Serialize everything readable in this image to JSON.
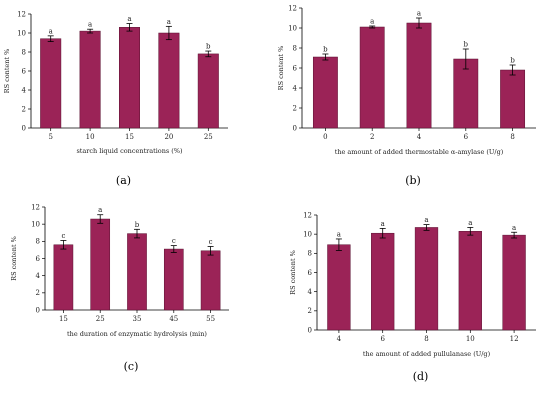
{
  "colors": {
    "bar": "#9b2357",
    "bar_edge": "#5a1030",
    "axis": "#000000",
    "error": "#000000"
  },
  "chart_data": [
    {
      "type": "bar",
      "panel_label": "(a)",
      "xlabel": "starch liquid concentrations (%)",
      "ylabel": "RS content %",
      "ylim": [
        0,
        12
      ],
      "yticks": [
        0,
        2,
        4,
        6,
        8,
        10,
        12
      ],
      "categories": [
        "5",
        "10",
        "15",
        "20",
        "25"
      ],
      "values": [
        9.4,
        10.2,
        10.6,
        10.0,
        7.8
      ],
      "errors": [
        0.3,
        0.2,
        0.4,
        0.7,
        0.3
      ],
      "significance": [
        "a",
        "a",
        "a",
        "a",
        "b"
      ]
    },
    {
      "type": "bar",
      "panel_label": "(b)",
      "xlabel": "the amount of added thermostable α-amylase (U/g)",
      "ylabel": "RS content %",
      "ylim": [
        0,
        12
      ],
      "yticks": [
        0,
        2,
        4,
        6,
        8,
        10,
        12
      ],
      "categories": [
        "0",
        "2",
        "4",
        "6",
        "8"
      ],
      "values": [
        7.1,
        10.1,
        10.5,
        6.9,
        5.8
      ],
      "errors": [
        0.3,
        0.1,
        0.5,
        1.0,
        0.5
      ],
      "significance": [
        "b",
        "a",
        "a",
        "b",
        "b"
      ]
    },
    {
      "type": "bar",
      "panel_label": "(c)",
      "xlabel": "the duration of enzymatic hydrolysis (min)",
      "ylabel": "RS content %",
      "ylim": [
        0,
        12
      ],
      "yticks": [
        0,
        2,
        4,
        6,
        8,
        10,
        12
      ],
      "categories": [
        "15",
        "25",
        "35",
        "45",
        "55"
      ],
      "values": [
        7.6,
        10.6,
        8.9,
        7.1,
        6.9
      ],
      "errors": [
        0.5,
        0.5,
        0.5,
        0.4,
        0.5
      ],
      "significance": [
        "c",
        "a",
        "b",
        "c",
        "c"
      ]
    },
    {
      "type": "bar",
      "panel_label": "(d)",
      "xlabel": "the amount of added pullulanase (U/g)",
      "ylabel": "RS content %",
      "ylim": [
        0,
        12
      ],
      "yticks": [
        0,
        2,
        4,
        6,
        8,
        10,
        12
      ],
      "categories": [
        "4",
        "6",
        "8",
        "10",
        "12"
      ],
      "values": [
        8.9,
        10.1,
        10.7,
        10.3,
        9.9
      ],
      "errors": [
        0.6,
        0.5,
        0.3,
        0.4,
        0.3
      ],
      "significance": [
        "a",
        "a",
        "a",
        "a",
        "a"
      ]
    }
  ]
}
